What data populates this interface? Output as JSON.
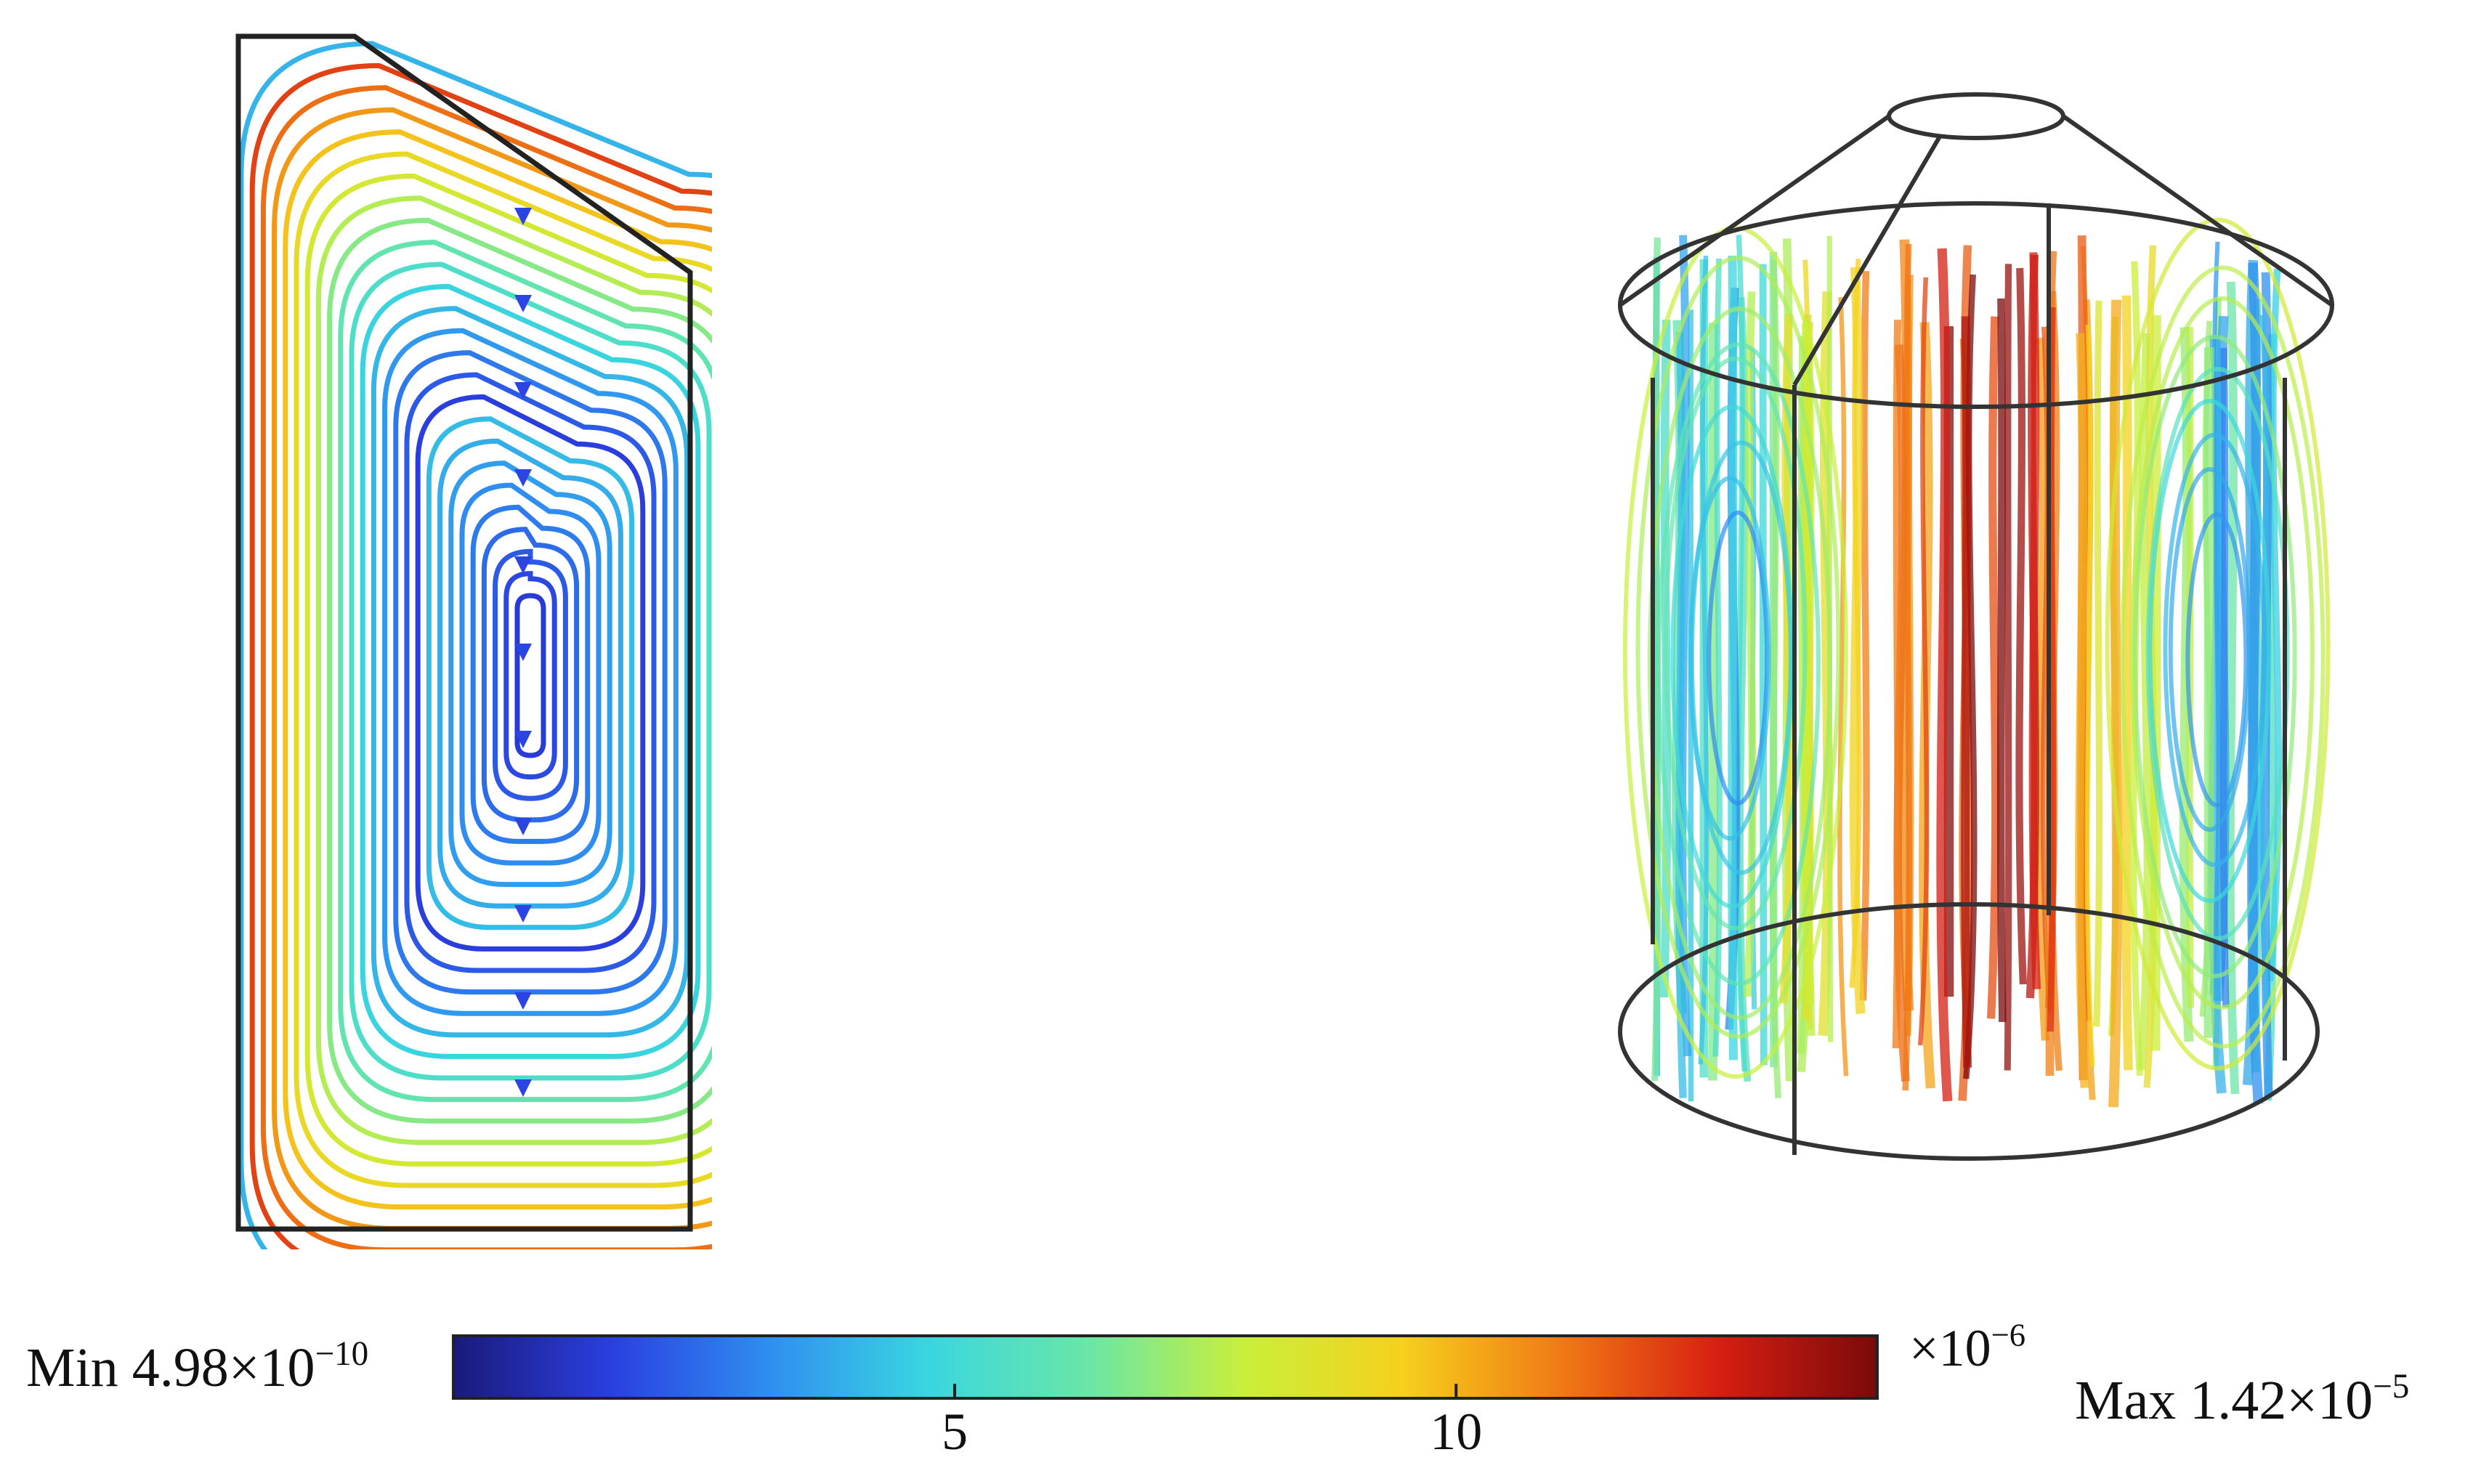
{
  "colorbar": {
    "min_prefix": "Min 4.98×10",
    "min_exp": "−10",
    "max_prefix": "Max 1.42×10",
    "max_exp": "−5",
    "multiplier_prefix": "×10",
    "multiplier_exp": "−6",
    "ticks": [
      {
        "value": 5,
        "label": "5"
      },
      {
        "value": 10,
        "label": "10"
      }
    ],
    "range": [
      0.000498,
      14.2
    ],
    "colormap": [
      "#1a1a7a",
      "#2a3fe0",
      "#2f8ff0",
      "#39d6e0",
      "#69e6a8",
      "#c9ef3a",
      "#f6d01c",
      "#f07a15",
      "#d81e12",
      "#7a0a0a"
    ]
  },
  "left_panel": {
    "kind": "2d-streamline-cross-section"
  },
  "right_panel": {
    "kind": "3d-streamline-cylinder"
  }
}
